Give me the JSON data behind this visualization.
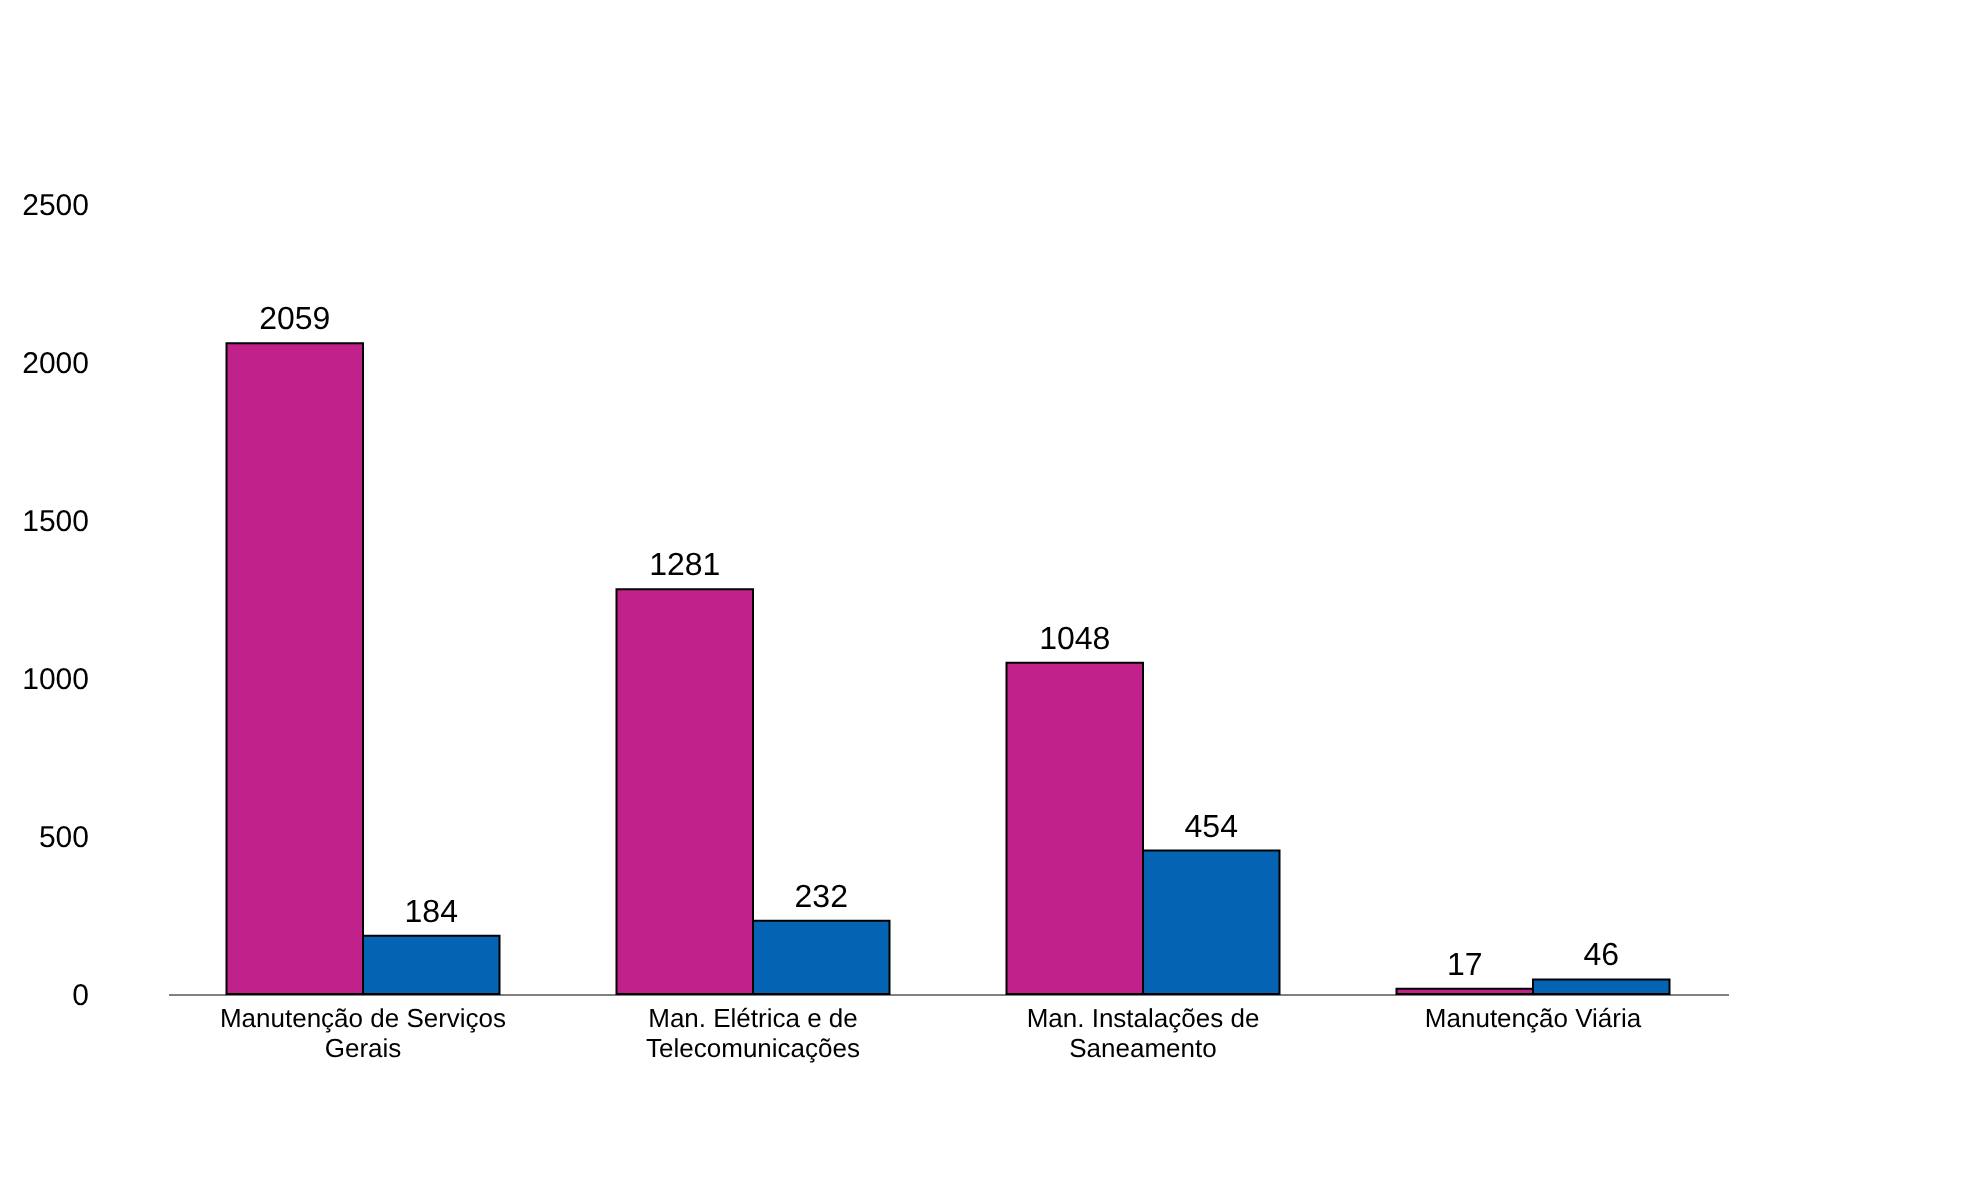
{
  "chart_data": {
    "type": "bar",
    "categories": [
      "Manutenção de Serviços Gerais",
      "Man. Elétrica e de Telecomunicações",
      "Man. Instalações de Saneamento",
      "Manutenção Viária"
    ],
    "series": [
      {
        "color": "#c0218a",
        "values": [
          2059,
          1281,
          1048,
          17
        ]
      },
      {
        "color": "#0563b4",
        "values": [
          184,
          232,
          454,
          46
        ]
      }
    ],
    "ylim": [
      0,
      2500
    ],
    "yticks": [
      0,
      500,
      1000,
      1500,
      2000,
      2500
    ],
    "grid": false,
    "data_labels": true
  }
}
